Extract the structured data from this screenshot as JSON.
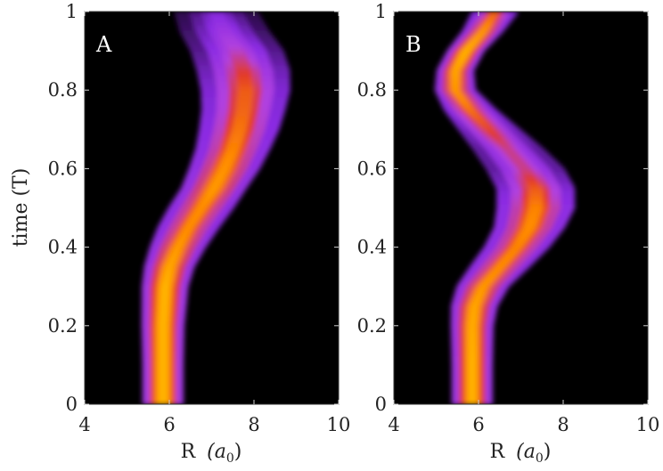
{
  "chart_data": [
    {
      "type": "heatmap",
      "panel_label": "A",
      "xlabel": "R",
      "xlabel_unit": "(a",
      "xlabel_unit_sub": "0",
      "xlabel_unit_close": ")",
      "ylabel": "time (T)",
      "xlim": [
        4,
        10
      ],
      "ylim": [
        0,
        1
      ],
      "xticks": [
        "4",
        "6",
        "8",
        "10"
      ],
      "yticks": [
        "0",
        "0.2",
        "0.4",
        "0.6",
        "0.8",
        "1"
      ],
      "colormap": [
        "#000000",
        "#3a1060",
        "#8a2be2",
        "#b040e0",
        "#e23a2a",
        "#ff8a00",
        "#ffb400"
      ],
      "trajectory": {
        "t": [
          0,
          0.1,
          0.2,
          0.3,
          0.35,
          0.4,
          0.45,
          0.5,
          0.55,
          0.6,
          0.65,
          0.7,
          0.75,
          0.8,
          0.85,
          0.9,
          0.95,
          1.0
        ],
        "R": [
          5.85,
          5.85,
          5.85,
          5.9,
          6.0,
          6.2,
          6.45,
          6.75,
          7.05,
          7.3,
          7.5,
          7.65,
          7.75,
          7.8,
          7.75,
          7.6,
          7.3,
          7.1
        ],
        "intensity": [
          1.0,
          1.0,
          0.98,
          0.95,
          0.9,
          0.85,
          0.8,
          0.8,
          0.85,
          0.82,
          0.78,
          0.75,
          0.72,
          0.7,
          0.62,
          0.5,
          0.4,
          0.3
        ],
        "width": [
          0.22,
          0.22,
          0.23,
          0.25,
          0.27,
          0.3,
          0.33,
          0.35,
          0.35,
          0.38,
          0.4,
          0.43,
          0.45,
          0.48,
          0.5,
          0.5,
          0.48,
          0.45
        ]
      }
    },
    {
      "type": "heatmap",
      "panel_label": "B",
      "xlabel": "R",
      "xlabel_unit": "(a",
      "xlabel_unit_sub": "0",
      "xlabel_unit_close": ")",
      "ylabel": "",
      "xlim": [
        4,
        10
      ],
      "ylim": [
        0,
        1
      ],
      "xticks": [
        "4",
        "6",
        "8",
        "10"
      ],
      "yticks": [
        "0",
        "0.2",
        "0.4",
        "0.6",
        "0.8",
        "1"
      ],
      "colormap": [
        "#000000",
        "#3a1060",
        "#8a2be2",
        "#b040e0",
        "#e23a2a",
        "#ff8a00",
        "#ffb400"
      ],
      "trajectory": {
        "t": [
          0,
          0.1,
          0.2,
          0.25,
          0.3,
          0.35,
          0.4,
          0.45,
          0.5,
          0.55,
          0.6,
          0.65,
          0.7,
          0.75,
          0.8,
          0.85,
          0.9,
          0.95,
          1.0
        ],
        "R": [
          5.85,
          5.85,
          5.85,
          5.9,
          6.1,
          6.5,
          6.9,
          7.2,
          7.35,
          7.35,
          7.1,
          6.7,
          6.25,
          5.8,
          5.45,
          5.45,
          5.7,
          6.1,
          6.4
        ],
        "intensity": [
          0.95,
          0.95,
          0.92,
          0.9,
          0.85,
          0.8,
          0.78,
          0.8,
          0.78,
          0.7,
          0.55,
          0.55,
          0.65,
          0.75,
          0.85,
          0.9,
          0.95,
          0.85,
          0.7
        ],
        "width": [
          0.22,
          0.22,
          0.23,
          0.25,
          0.28,
          0.32,
          0.35,
          0.38,
          0.42,
          0.42,
          0.42,
          0.38,
          0.33,
          0.28,
          0.22,
          0.2,
          0.2,
          0.22,
          0.25
        ]
      }
    }
  ]
}
